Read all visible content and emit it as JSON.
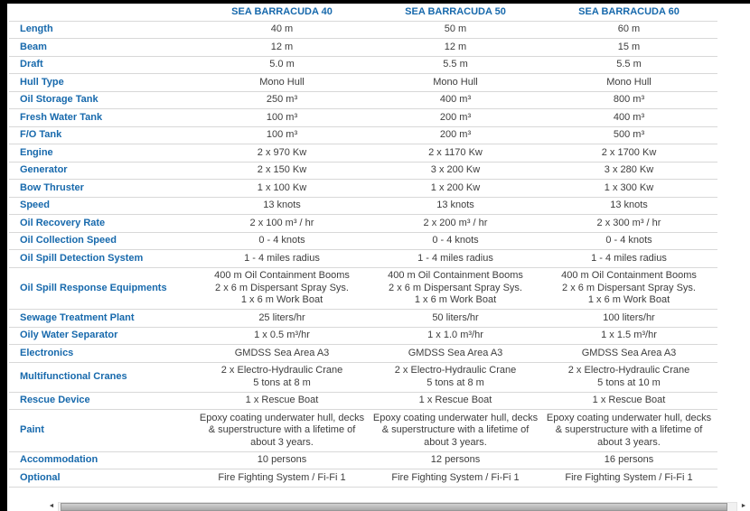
{
  "colors": {
    "accent": "#1769ac",
    "value_text": "#3d3d3d",
    "divider": "#d8d8d8",
    "frame": "#000000"
  },
  "table": {
    "headers": [
      "SEA BARRACUDA 40",
      "SEA BARRACUDA 50",
      "SEA BARRACUDA 60"
    ],
    "rows": [
      {
        "label": "Length",
        "values": [
          "40 m",
          "50 m",
          "60 m"
        ]
      },
      {
        "label": "Beam",
        "values": [
          "12 m",
          "12 m",
          "15 m"
        ]
      },
      {
        "label": "Draft",
        "values": [
          "5.0 m",
          "5.5 m",
          "5.5 m"
        ]
      },
      {
        "label": "Hull Type",
        "values": [
          "Mono Hull",
          "Mono Hull",
          "Mono Hull"
        ]
      },
      {
        "label": "Oil Storage Tank",
        "values": [
          "250 m³",
          "400 m³",
          "800 m³"
        ]
      },
      {
        "label": "Fresh Water Tank",
        "values": [
          "100 m³",
          "200 m³",
          "400 m³"
        ]
      },
      {
        "label": "F/O Tank",
        "values": [
          "100 m³",
          "200 m³",
          "500 m³"
        ]
      },
      {
        "label": "Engine",
        "values": [
          "2 x 970 Kw",
          "2 x 1170 Kw",
          "2 x 1700 Kw"
        ]
      },
      {
        "label": "Generator",
        "values": [
          "2 x 150 Kw",
          "3 x 200 Kw",
          "3 x 280 Kw"
        ]
      },
      {
        "label": "Bow Thruster",
        "values": [
          "1 x 100 Kw",
          "1 x 200 Kw",
          "1 x 300 Kw"
        ]
      },
      {
        "label": "Speed",
        "values": [
          "13 knots",
          "13 knots",
          "13 knots"
        ]
      },
      {
        "label": "Oil Recovery Rate",
        "values": [
          "2 x 100 m³ / hr",
          "2 x 200 m³ / hr",
          "2 x 300 m³ / hr"
        ]
      },
      {
        "label": "Oil Collection Speed",
        "values": [
          "0 - 4 knots",
          "0 - 4 knots",
          "0 - 4 knots"
        ]
      },
      {
        "label": "Oil Spill Detection System",
        "values": [
          "1 - 4 miles radius",
          "1 - 4 miles radius",
          "1 - 4 miles radius"
        ]
      },
      {
        "label": "Oil Spill Response Equipments",
        "values": [
          "400 m Oil Containment Booms\n2 x 6 m Dispersant Spray Sys.\n1 x 6 m Work Boat",
          "400 m Oil Containment Booms\n2 x 6 m Dispersant Spray Sys.\n1 x 6 m Work Boat",
          "400 m Oil Containment Booms\n2 x 6 m Dispersant Spray Sys.\n1 x 6 m Work Boat"
        ]
      },
      {
        "label": "Sewage Treatment Plant",
        "values": [
          "25 liters/hr",
          "50 liters/hr",
          "100 liters/hr"
        ]
      },
      {
        "label": "Oily Water Separator",
        "values": [
          "1 x 0.5 m³/hr",
          "1 x 1.0 m³/hr",
          "1 x 1.5 m³/hr"
        ]
      },
      {
        "label": "Electronics",
        "values": [
          "GMDSS Sea Area A3",
          "GMDSS Sea Area A3",
          "GMDSS Sea Area A3"
        ]
      },
      {
        "label": "Multifunctional Cranes",
        "values": [
          "2 x Electro-Hydraulic Crane\n5 tons at 8 m",
          "2 x Electro-Hydraulic Crane\n5 tons at 8 m",
          "2 x Electro-Hydraulic Crane\n5 tons at 10 m"
        ]
      },
      {
        "label": "Rescue Device",
        "values": [
          "1 x Rescue Boat",
          "1 x Rescue Boat",
          "1 x Rescue Boat"
        ]
      },
      {
        "label": "Paint",
        "values": [
          "Epoxy coating underwater hull, decks & superstructure with a lifetime of about 3 years.",
          "Epoxy coating underwater hull, decks & superstructure with a lifetime of about 3 years.",
          "Epoxy coating underwater hull, decks & superstructure with a lifetime of about 3 years."
        ]
      },
      {
        "label": "Accommodation",
        "values": [
          "10 persons",
          "12 persons",
          "16 persons"
        ]
      },
      {
        "label": "Optional",
        "values": [
          "Fire Fighting System / Fi-Fi 1",
          "Fire Fighting System / Fi-Fi 1",
          "Fire Fighting System / Fi-Fi 1"
        ]
      }
    ]
  },
  "scrollbar": {
    "left_arrow_icon": "◄",
    "right_arrow_icon": "►"
  }
}
